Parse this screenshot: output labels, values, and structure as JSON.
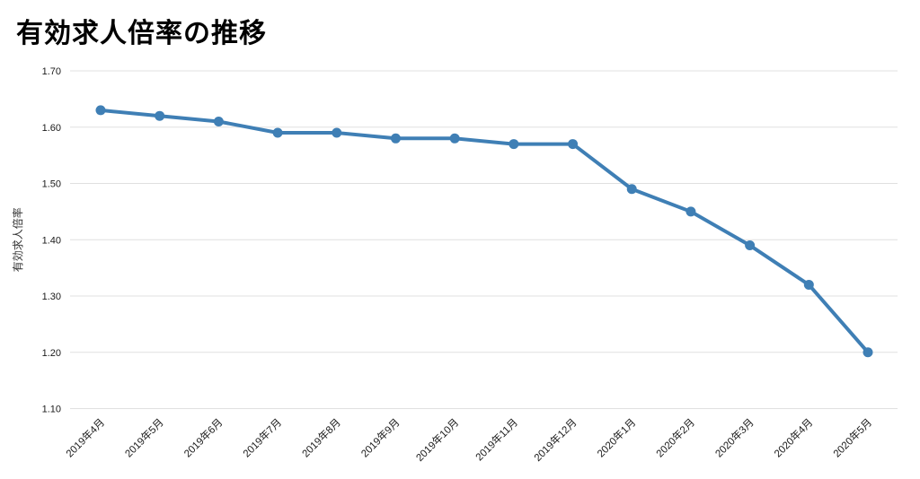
{
  "page": {
    "title": "有効求人倍率の推移"
  },
  "chart_data": {
    "type": "line",
    "title": "有効求人倍率の推移",
    "xlabel": "",
    "ylabel": "有効求人倍率",
    "categories": [
      "2019年4月",
      "2019年5月",
      "2019年6月",
      "2019年7月",
      "2019年8月",
      "2019年9月",
      "2019年10月",
      "2019年11月",
      "2019年12月",
      "2020年1月",
      "2020年2月",
      "2020年3月",
      "2020年4月",
      "2020年5月"
    ],
    "series": [
      {
        "name": "有効求人倍率",
        "values": [
          1.63,
          1.62,
          1.61,
          1.59,
          1.59,
          1.58,
          1.58,
          1.57,
          1.57,
          1.49,
          1.45,
          1.39,
          1.32,
          1.2
        ]
      }
    ],
    "ylim": [
      1.1,
      1.7
    ],
    "yticks": [
      "1.70",
      "1.60",
      "1.50",
      "1.40",
      "1.30",
      "1.20",
      "1.10"
    ],
    "grid": true,
    "legend": "none",
    "colors": {
      "line": "#3f7fb5",
      "point": "#3f7fb5",
      "grid": "#e0e0e0",
      "tick_text": "#1a1a1a",
      "axis_title_text": "#333333",
      "background": "#ffffff"
    }
  }
}
